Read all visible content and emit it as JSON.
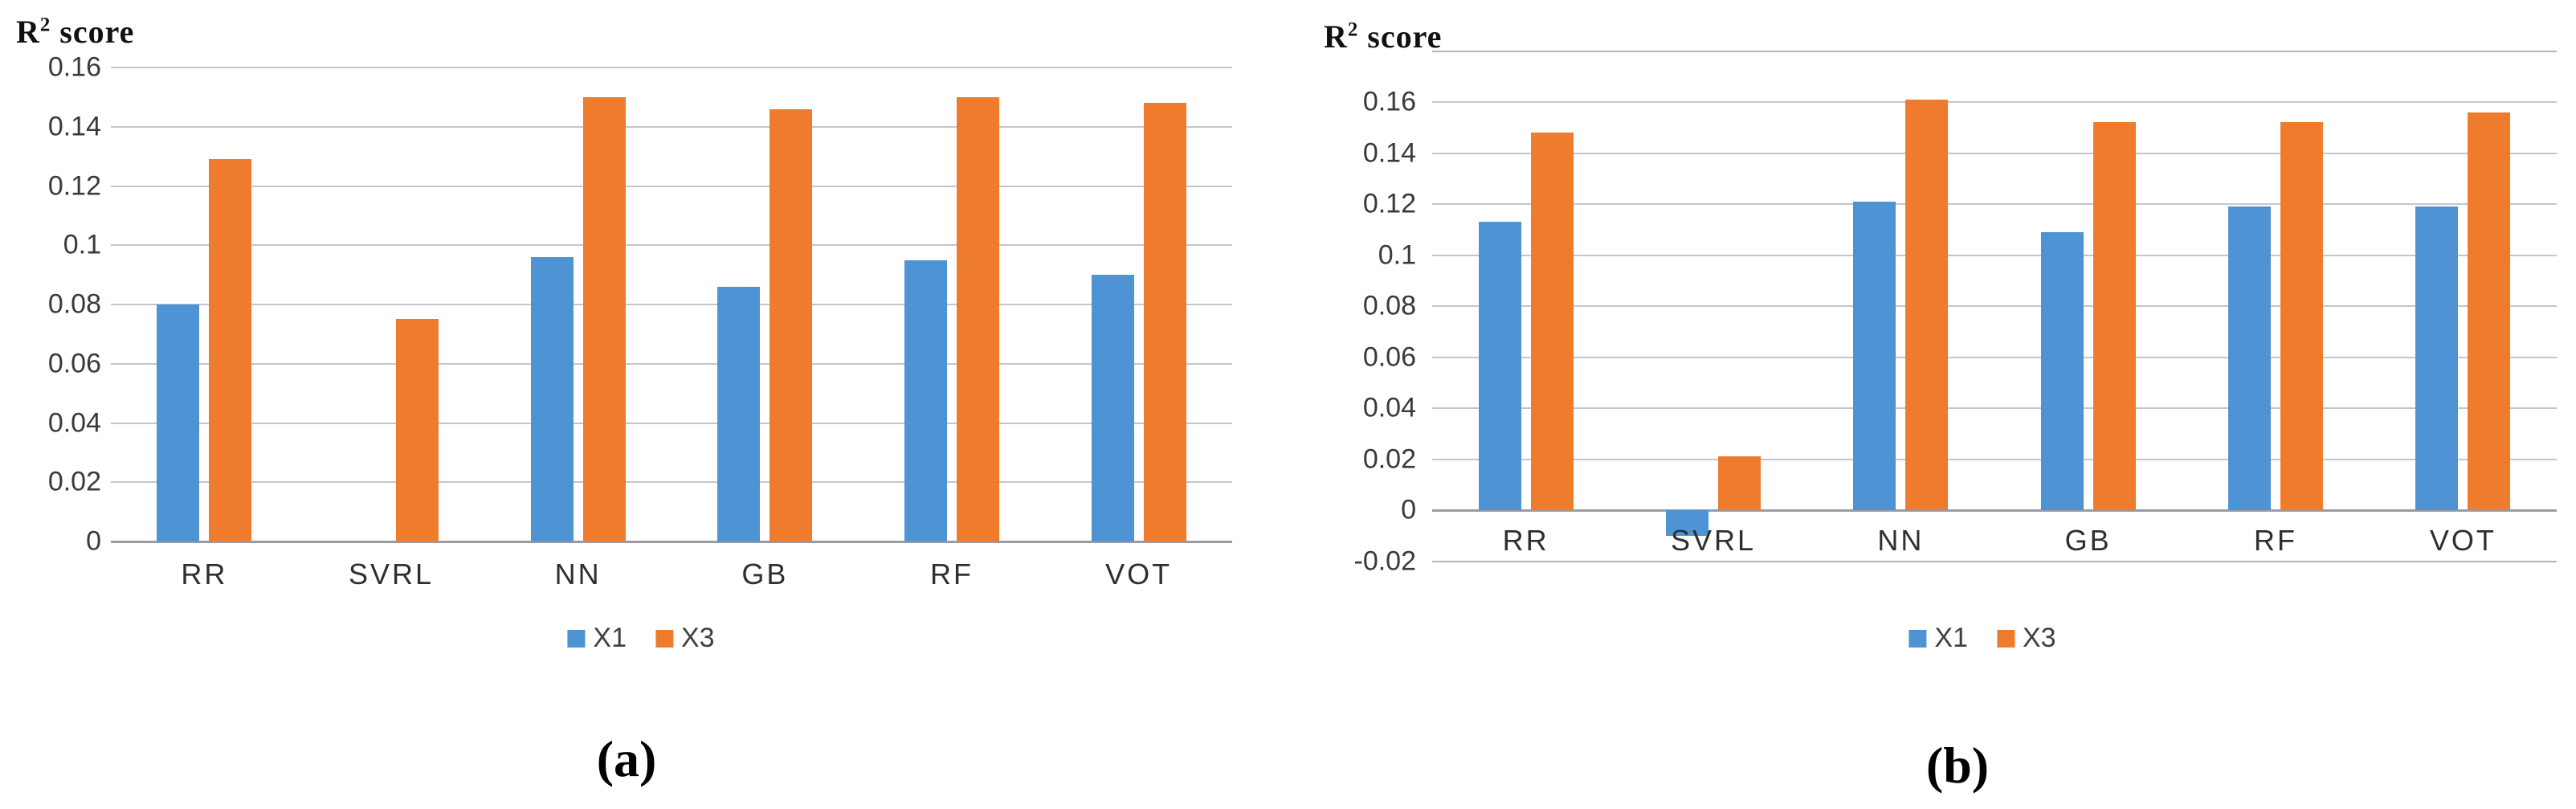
{
  "figure": {
    "description": "Two grouped bar charts comparing R2 score of regression models for feature sets X1 and X3",
    "background": "#ffffff"
  },
  "chart_data": [
    {
      "type": "bar",
      "panel": "a",
      "caption": "(a)",
      "title": "R² score",
      "title_parts": {
        "base": "R",
        "sup": "2",
        "rest": " score"
      },
      "categories": [
        "RR",
        "SVRL",
        "NN",
        "GB",
        "RF",
        "VOT"
      ],
      "series": [
        {
          "name": "X1",
          "color": "#4E93D3",
          "values": [
            0.08,
            0,
            0.096,
            0.086,
            0.095,
            0.09
          ]
        },
        {
          "name": "X3",
          "color": "#EE7C2C",
          "values": [
            0.129,
            0.075,
            0.15,
            0.146,
            0.15,
            0.148
          ]
        }
      ],
      "ylim": [
        0,
        0.16
      ],
      "yticks": [
        0,
        0.02,
        0.04,
        0.06,
        0.08,
        0.1,
        0.12,
        0.14,
        0.16
      ],
      "ytick_labels": [
        "0",
        "0.02",
        "0.04",
        "0.06",
        "0.08",
        "0.1",
        "0.12",
        "0.14",
        "0.16"
      ],
      "grid": true,
      "legend_position": "bottom",
      "xlabel": "",
      "ylabel": "R² score"
    },
    {
      "type": "bar",
      "panel": "b",
      "caption": "(b)",
      "title": "R² score",
      "title_parts": {
        "base": "R",
        "sup": "2",
        "rest": " score"
      },
      "categories": [
        "RR",
        "SVRL",
        "NN",
        "GB",
        "RF",
        "VOT"
      ],
      "series": [
        {
          "name": "X1",
          "color": "#4E93D3",
          "values": [
            0.113,
            -0.01,
            0.121,
            0.109,
            0.119,
            0.119
          ]
        },
        {
          "name": "X3",
          "color": "#EE7C2C",
          "values": [
            0.148,
            0.021,
            0.161,
            0.152,
            0.152,
            0.156
          ]
        }
      ],
      "ylim": [
        -0.02,
        0.18
      ],
      "yticks": [
        -0.02,
        0,
        0.02,
        0.04,
        0.06,
        0.08,
        0.1,
        0.12,
        0.14,
        0.16
      ],
      "ytick_labels": [
        "-0.02",
        "0",
        "0.02",
        "0.04",
        "0.06",
        "0.08",
        "0.1",
        "0.12",
        "0.14",
        "0.16"
      ],
      "grid": true,
      "legend_position": "bottom",
      "xlabel": "",
      "ylabel": "R² score"
    }
  ]
}
